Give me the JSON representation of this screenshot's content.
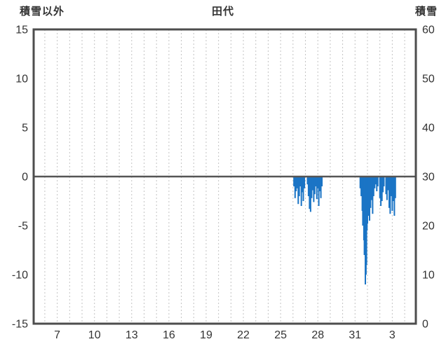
{
  "chart_data": {
    "type": "bar",
    "title": "田代",
    "left_axis": {
      "label": "積雪以外",
      "min": -15,
      "max": 15,
      "ticks": [
        15,
        10,
        5,
        0,
        -5,
        -10,
        -15
      ]
    },
    "right_axis": {
      "label": "積雪",
      "min": 0,
      "max": 60,
      "ticks": [
        60,
        50,
        40,
        30,
        20,
        10,
        0
      ]
    },
    "x_axis": {
      "domain_start": 5.1,
      "domain_end": 35.9,
      "tick_days": [
        7,
        10,
        13,
        16,
        19,
        22,
        25,
        28,
        31,
        34
      ],
      "tick_labels": [
        "7",
        "10",
        "13",
        "16",
        "19",
        "22",
        "25",
        "28",
        "31",
        "3"
      ],
      "grid_every_days": 1,
      "note": "days 32-35 represent days 1-4 of following month"
    },
    "grid": {
      "vertical": true,
      "horizontal": false,
      "style": "dotted"
    },
    "legend": "none",
    "colors": {
      "bar": "#1b74c5",
      "grid": "#c3c3c3",
      "border": "#4d4d4d",
      "zero_line": "#555555",
      "text": "#333333"
    },
    "series": [
      {
        "name": "積雪以外",
        "axis": "left",
        "color": "#1b74c5",
        "points": [
          [
            26.08,
            -1.0
          ],
          [
            26.17,
            -2.2
          ],
          [
            26.25,
            -1.5
          ],
          [
            26.33,
            -1.2
          ],
          [
            26.42,
            -2.8
          ],
          [
            26.5,
            -2.0
          ],
          [
            26.58,
            -1.0
          ],
          [
            26.67,
            -3.0
          ],
          [
            26.75,
            -1.6
          ],
          [
            26.83,
            -2.5
          ],
          [
            26.92,
            -1.2
          ],
          [
            27.17,
            -0.8
          ],
          [
            27.25,
            -2.0
          ],
          [
            27.33,
            -3.3
          ],
          [
            27.42,
            -3.6
          ],
          [
            27.5,
            -2.2
          ],
          [
            27.58,
            -1.4
          ],
          [
            27.67,
            -2.6
          ],
          [
            27.75,
            -1.8
          ],
          [
            27.83,
            -1.0
          ],
          [
            27.92,
            -2.3
          ],
          [
            28.0,
            -1.2
          ],
          [
            28.08,
            -3.0
          ],
          [
            28.17,
            -1.5
          ],
          [
            28.25,
            -2.2
          ],
          [
            28.33,
            -1.0
          ],
          [
            31.42,
            -1.2
          ],
          [
            31.5,
            -2.0
          ],
          [
            31.58,
            -3.5
          ],
          [
            31.63,
            -5.0
          ],
          [
            31.67,
            -4.2
          ],
          [
            31.71,
            -6.5
          ],
          [
            31.75,
            -8.0
          ],
          [
            31.83,
            -11.0
          ],
          [
            31.88,
            -10.0
          ],
          [
            31.92,
            -9.0
          ],
          [
            31.96,
            -5.5
          ],
          [
            32.0,
            -4.8
          ],
          [
            32.08,
            -4.0
          ],
          [
            32.17,
            -4.5
          ],
          [
            32.25,
            -3.2
          ],
          [
            32.33,
            -2.4
          ],
          [
            32.42,
            -3.8
          ],
          [
            32.5,
            -2.0
          ],
          [
            32.58,
            -1.2
          ],
          [
            32.67,
            -0.8
          ],
          [
            32.75,
            -1.5
          ],
          [
            32.83,
            -1.0
          ],
          [
            33.0,
            -2.2
          ],
          [
            33.08,
            -3.0
          ],
          [
            33.17,
            -2.5
          ],
          [
            33.25,
            -1.6
          ],
          [
            33.33,
            -1.0
          ],
          [
            33.5,
            -1.8
          ],
          [
            33.58,
            -2.4
          ],
          [
            33.67,
            -1.4
          ],
          [
            33.75,
            -3.2
          ],
          [
            33.83,
            -3.8
          ],
          [
            33.92,
            -2.0
          ],
          [
            34.0,
            -3.5
          ],
          [
            34.08,
            -2.5
          ],
          [
            34.17,
            -4.0
          ],
          [
            34.25,
            -2.2
          ]
        ]
      }
    ]
  }
}
